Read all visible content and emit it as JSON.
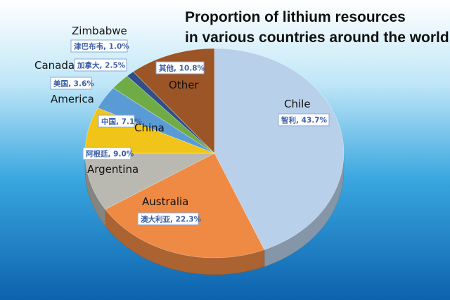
{
  "title_line1": "Proportion of lithium resources",
  "title_line2": "in various countries around the world",
  "chart_data": {
    "type": "pie",
    "title": "Proportion of lithium resources in various countries around the world",
    "unit": "%",
    "slices": [
      {
        "name": "Chile",
        "cn_label": "智利, 43.7%",
        "value": 43.7,
        "color": "#b8d0ea"
      },
      {
        "name": "Australia",
        "cn_label": "澳大利亚, 22.3%",
        "value": 22.3,
        "color": "#ee8a44"
      },
      {
        "name": "Argentina",
        "cn_label": "阿根廷, 9.0%",
        "value": 9.0,
        "color": "#b9b9b2"
      },
      {
        "name": "China",
        "cn_label": "中国, 7.1%",
        "value": 7.1,
        "color": "#f0c419"
      },
      {
        "name": "America",
        "cn_label": "美国, 3.6%",
        "value": 3.6,
        "color": "#5b9bd5"
      },
      {
        "name": "Canada",
        "cn_label": "加拿大, 2.5%",
        "value": 2.5,
        "color": "#6fac46"
      },
      {
        "name": "Zimbabwe",
        "cn_label": "津巴布韦, 1.0%",
        "value": 1.0,
        "color": "#2f4f8a"
      },
      {
        "name": "Other",
        "cn_label": "其他, 10.8%",
        "value": 10.8,
        "color": "#9c5527"
      }
    ]
  }
}
